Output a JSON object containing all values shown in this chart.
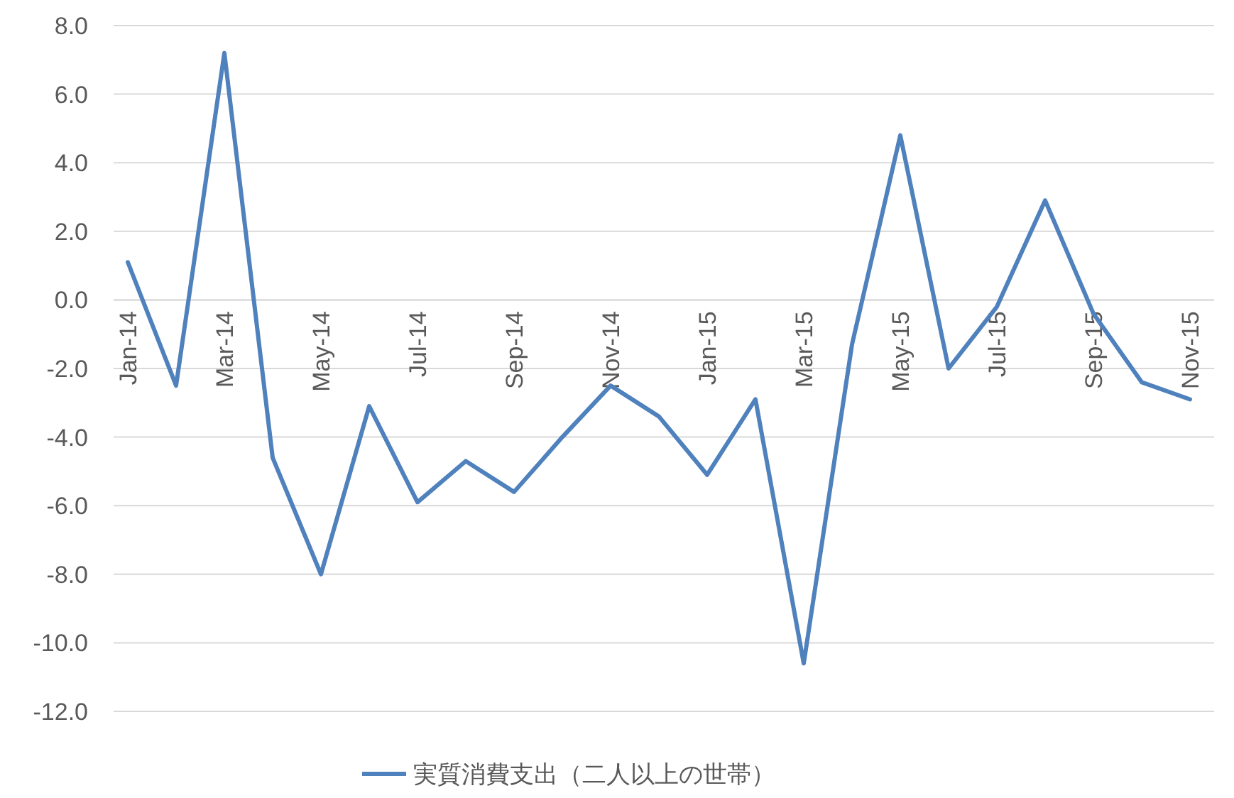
{
  "chart_data": {
    "type": "line",
    "categories": [
      "Jan-14",
      null,
      "Mar-14",
      null,
      "May-14",
      null,
      "Jul-14",
      null,
      "Sep-14",
      null,
      "Nov-14",
      null,
      "Jan-15",
      null,
      "Mar-15",
      null,
      "May-15",
      null,
      "Jul-15",
      null,
      "Sep-15",
      null,
      "Nov-15"
    ],
    "series": [
      {
        "name": "実質消費支出（二人以上の世帯）",
        "color": "#4f81bd",
        "values": [
          1.1,
          -2.5,
          7.2,
          -4.6,
          -8.0,
          -3.1,
          -5.9,
          -4.7,
          -5.6,
          -4.0,
          -2.5,
          -3.4,
          -5.1,
          -2.9,
          -10.6,
          -1.3,
          4.8,
          -2.0,
          -0.2,
          2.9,
          -0.4,
          -2.4,
          -2.9
        ]
      }
    ],
    "ylim": [
      -12,
      8
    ],
    "yticks": [
      {
        "value": -12,
        "label": "-12.0"
      },
      {
        "value": -10,
        "label": "-10.0"
      },
      {
        "value": -8,
        "label": "-8.0"
      },
      {
        "value": -6,
        "label": "-6.0"
      },
      {
        "value": -4,
        "label": "-4.0"
      },
      {
        "value": -2,
        "label": "-2.0"
      },
      {
        "value": 0,
        "label": "0.0"
      },
      {
        "value": 2,
        "label": "2.0"
      },
      {
        "value": 4,
        "label": "4.0"
      },
      {
        "value": 6,
        "label": "6.0"
      },
      {
        "value": 8,
        "label": "8.0"
      }
    ],
    "grid": "y",
    "legend": "bottom",
    "marker": "none",
    "line_style": "solid"
  }
}
